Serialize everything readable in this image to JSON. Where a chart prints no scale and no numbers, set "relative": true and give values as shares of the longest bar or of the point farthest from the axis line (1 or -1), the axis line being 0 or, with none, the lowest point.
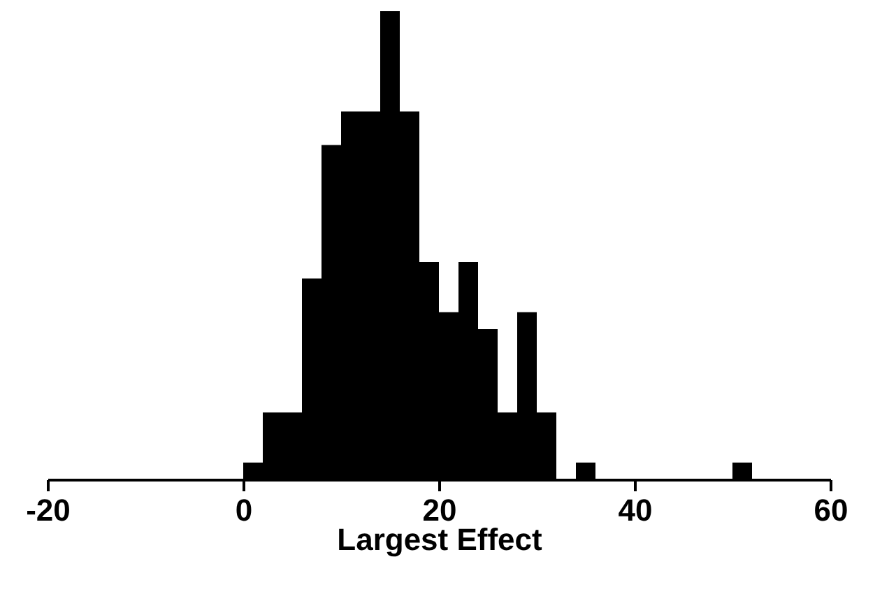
{
  "chart_data": {
    "type": "bar",
    "xlabel": "Largest Effect",
    "relative": true,
    "color": "#000000",
    "x": [
      1,
      3,
      5,
      7,
      9,
      11,
      13,
      15,
      17,
      19,
      21,
      23,
      25,
      27,
      29,
      31,
      33,
      35,
      37,
      39,
      41,
      43,
      45,
      47,
      49,
      51
    ],
    "values": [
      0.036,
      0.143,
      0.143,
      0.429,
      0.714,
      0.786,
      0.786,
      1,
      0.786,
      0.464,
      0.357,
      0.464,
      0.321,
      0.143,
      0.357,
      0.143,
      0,
      0.036,
      0,
      0,
      0,
      0,
      0,
      0,
      0,
      0.036
    ],
    "xlim": [
      -20,
      60
    ],
    "xticks": [
      -20,
      0,
      20,
      40,
      60
    ],
    "grid": false
  }
}
